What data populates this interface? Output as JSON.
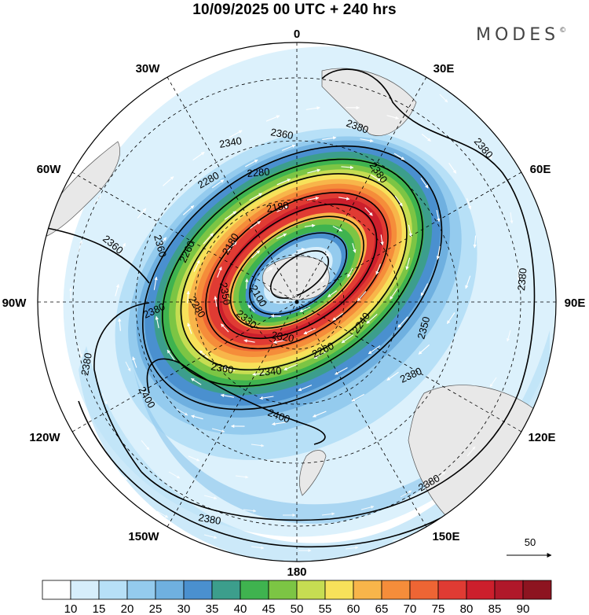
{
  "header": {
    "title": "10/09/2025  00 UTC  + 240 hrs",
    "brand": "MODES",
    "brand_mark": "©"
  },
  "map": {
    "projection": "south-polar-stereographic",
    "longitude_labels": [
      {
        "text": "0",
        "lon": 0
      },
      {
        "text": "30E",
        "lon": 30
      },
      {
        "text": "60E",
        "lon": 60
      },
      {
        "text": "90E",
        "lon": 90
      },
      {
        "text": "120E",
        "lon": 120
      },
      {
        "text": "150E",
        "lon": 150
      },
      {
        "text": "180",
        "lon": 180
      },
      {
        "text": "150W",
        "lon": -150
      },
      {
        "text": "120W",
        "lon": -120
      },
      {
        "text": "90W",
        "lon": -90
      },
      {
        "text": "60W",
        "lon": -60
      },
      {
        "text": "30W",
        "lon": -30
      }
    ],
    "contour_labels": [
      "2100",
      "2180",
      "2180",
      "2240",
      "2260",
      "2260",
      "2280",
      "2280",
      "2280",
      "2320",
      "2340",
      "2340",
      "2350",
      "2360",
      "2360",
      "2360",
      "2380",
      "2380",
      "2380",
      "2380",
      "2380",
      "2380",
      "2380",
      "2380",
      "2380",
      "2400",
      "2400",
      "2360",
      "2350",
      "2330"
    ],
    "shading_variable": "wind speed",
    "vector_variable": "wind vector",
    "reference_vector_label": "50"
  },
  "colorbar": {
    "ticks": [
      "10",
      "15",
      "20",
      "25",
      "30",
      "35",
      "40",
      "45",
      "50",
      "55",
      "60",
      "65",
      "70",
      "75",
      "80",
      "85",
      "90"
    ],
    "colors": [
      "#ffffff",
      "#d6eefb",
      "#b7e0f7",
      "#94cbee",
      "#6fb0e0",
      "#4a90cf",
      "#3c9e8c",
      "#3fb34f",
      "#7cc544",
      "#c6dd52",
      "#f7e15a",
      "#f8b54a",
      "#f58d3a",
      "#ee6534",
      "#e03b33",
      "#cc1f2c",
      "#b0182a",
      "#8d1420"
    ]
  }
}
